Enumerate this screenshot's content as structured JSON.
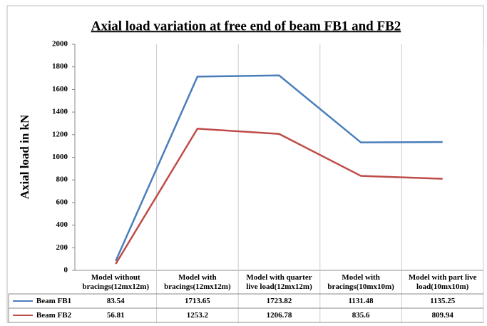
{
  "chart_data": {
    "type": "line",
    "title": "Axial load variation at free end of beam FB1 and FB2",
    "y_label": "Axial load in kN",
    "categories": [
      "Model without bracings(12mx12m)",
      "Model with bracings(12mx12m)",
      "Model with quarter live load(12mx12m)",
      "Model with bracings(10mx10m)",
      "Model with part live load(10mx10m)"
    ],
    "series": [
      {
        "name": "Beam FB1",
        "color": "#4a7ebb",
        "values": [
          83.54,
          1713.65,
          1723.82,
          1131.48,
          1135.25
        ]
      },
      {
        "name": "Beam FB2",
        "color": "#be4b48",
        "values": [
          56.81,
          1253.2,
          1206.78,
          835.6,
          809.94
        ]
      }
    ],
    "ylim": [
      0,
      2000
    ],
    "yticks": [
      0,
      200,
      400,
      600,
      800,
      1000,
      1200,
      1400,
      1600,
      1800,
      2000
    ],
    "grid": false,
    "legend": "data-table"
  }
}
